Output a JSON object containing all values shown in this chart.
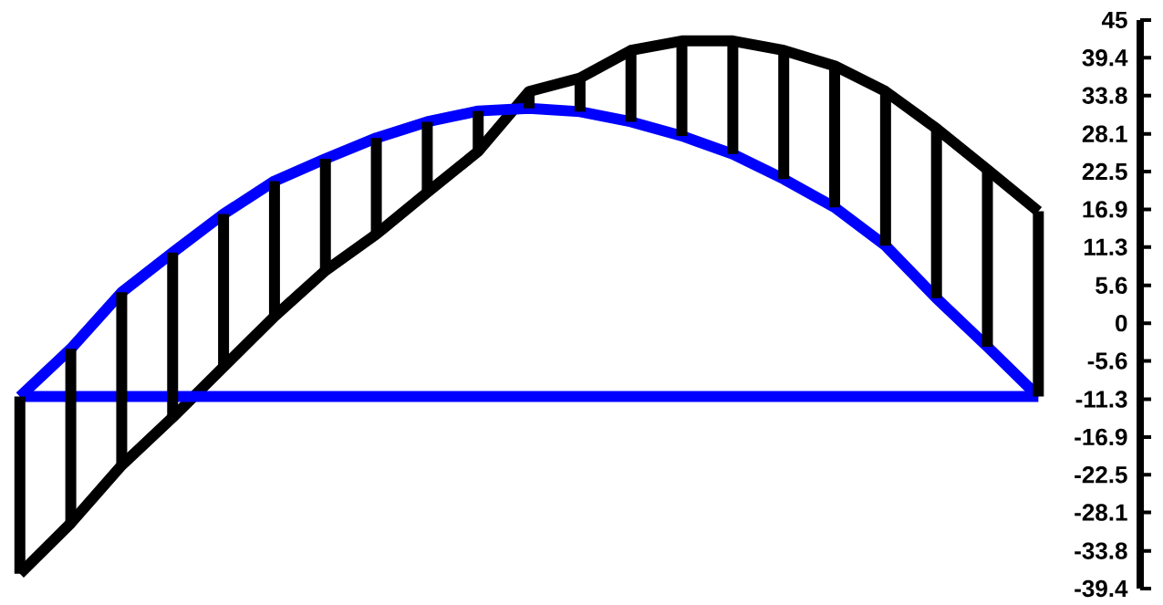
{
  "chart_data": {
    "type": "line",
    "ylim": [
      -39.4,
      45
    ],
    "tick_labels": "y",
    "grid": false,
    "line_style": "solid",
    "categories": [
      null,
      null,
      null,
      null,
      null,
      null,
      null,
      null,
      null,
      null,
      null,
      null,
      null,
      null,
      null,
      null,
      null,
      null,
      null,
      null,
      null
    ],
    "yticks": [
      45,
      39.4,
      33.8,
      28.1,
      22.5,
      16.9,
      11.3,
      5.6,
      0,
      -5.6,
      -11.3,
      -16.9,
      -22.5,
      -28.1,
      -33.8,
      -39.4
    ],
    "series": [
      {
        "color": "#000000",
        "marker": "none",
        "values": [
          -37.2,
          -29.7,
          -21.1,
          -14.0,
          -6.5,
          1.0,
          7.8,
          13.2,
          19.4,
          25.5,
          34.4,
          36.4,
          40.5,
          41.9,
          41.9,
          40.5,
          38.2,
          34.4,
          28.9,
          22.8,
          16.6
        ],
        "errors": [
          [
            -37.2,
            -10.9
          ],
          [
            -29.7,
            -3.8
          ],
          [
            -21.1,
            4.6
          ],
          [
            -14.0,
            10.5
          ],
          [
            -6.5,
            16.2
          ],
          [
            1.0,
            21.1
          ],
          [
            7.8,
            24.4
          ],
          [
            13.2,
            27.5
          ],
          [
            19.4,
            29.9
          ],
          [
            25.5,
            31.5
          ],
          [
            31.9,
            34.4
          ],
          [
            31.4,
            36.4
          ],
          [
            29.9,
            40.5
          ],
          [
            27.8,
            41.9
          ],
          [
            25.1,
            41.9
          ],
          [
            21.4,
            40.5
          ],
          [
            17.2,
            38.2
          ],
          [
            11.5,
            34.4
          ],
          [
            3.7,
            28.9
          ],
          [
            -3.5,
            22.8
          ],
          [
            -10.9,
            16.6
          ]
        ]
      },
      {
        "color": "#0000ff",
        "marker": "none",
        "values": [
          -10.9,
          -3.8,
          4.6,
          10.5,
          16.2,
          21.1,
          24.4,
          27.5,
          29.9,
          31.5,
          31.9,
          31.4,
          29.9,
          27.8,
          25.1,
          21.4,
          17.2,
          11.5,
          3.7,
          -3.5,
          -10.9
        ]
      }
    ],
    "ref_lines": [
      {
        "axis": "y",
        "value": -10.9,
        "color": "#0000ff"
      }
    ]
  }
}
